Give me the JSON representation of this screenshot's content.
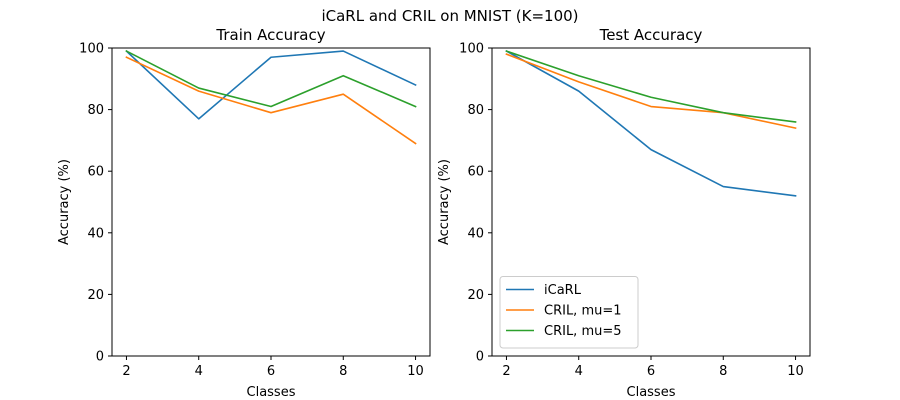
{
  "figure": {
    "suptitle": "iCaRL and CRIL on MNIST (K=100)"
  },
  "colors": {
    "icarl": "#1f77b4",
    "cril_mu1": "#ff7f0e",
    "cril_mu5": "#2ca02c"
  },
  "chart_data": [
    {
      "type": "line",
      "title": "Train Accuracy",
      "xlabel": "Classes",
      "ylabel": "Accuracy (%)",
      "x": [
        2,
        4,
        6,
        8,
        10
      ],
      "xticks": [
        2,
        4,
        6,
        8,
        10
      ],
      "yticks": [
        0,
        20,
        40,
        60,
        80,
        100
      ],
      "xlim": [
        1.6,
        10.4
      ],
      "ylim": [
        0,
        100
      ],
      "grid": false,
      "legend": null,
      "series": [
        {
          "name": "iCaRL",
          "color": "#1f77b4",
          "values": [
            99,
            77,
            97,
            99,
            88
          ]
        },
        {
          "name": "CRIL, mu=1",
          "color": "#ff7f0e",
          "values": [
            97,
            86,
            79,
            85,
            69
          ]
        },
        {
          "name": "CRIL, mu=5",
          "color": "#2ca02c",
          "values": [
            99,
            87,
            81,
            91,
            81
          ]
        }
      ]
    },
    {
      "type": "line",
      "title": "Test Accuracy",
      "xlabel": "Classes",
      "ylabel": "Accuracy (%)",
      "x": [
        2,
        4,
        6,
        8,
        10
      ],
      "xticks": [
        2,
        4,
        6,
        8,
        10
      ],
      "yticks": [
        0,
        20,
        40,
        60,
        80,
        100
      ],
      "xlim": [
        1.6,
        10.4
      ],
      "ylim": [
        0,
        100
      ],
      "grid": false,
      "legend": "lower-left",
      "series": [
        {
          "name": "iCaRL",
          "color": "#1f77b4",
          "values": [
            99,
            86,
            67,
            55,
            52
          ]
        },
        {
          "name": "CRIL, mu=1",
          "color": "#ff7f0e",
          "values": [
            98,
            89,
            81,
            79,
            74
          ]
        },
        {
          "name": "CRIL, mu=5",
          "color": "#2ca02c",
          "values": [
            99,
            91,
            84,
            79,
            76
          ]
        }
      ]
    }
  ]
}
